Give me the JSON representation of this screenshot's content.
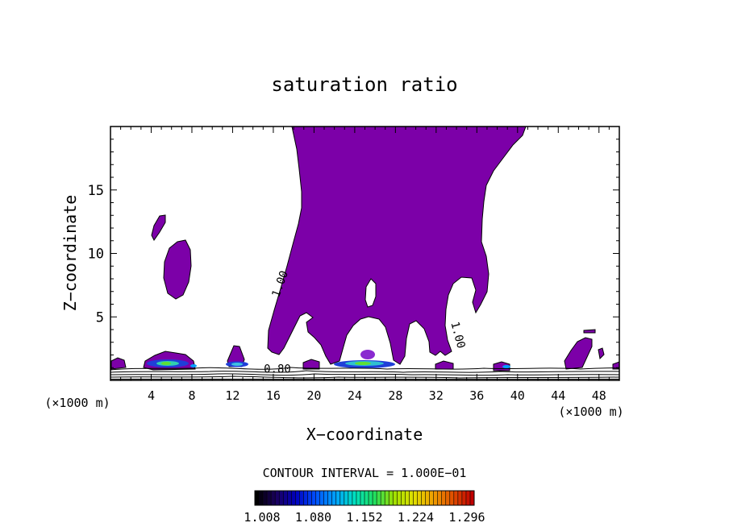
{
  "chart_data": {
    "type": "contour",
    "title": "saturation ratio",
    "xlabel": "X−coordinate",
    "ylabel": "Z−coordinate",
    "x_unit_left": "(×1000 m)",
    "x_unit_right": "(×1000 m)",
    "xlim": [
      0,
      50
    ],
    "ylim": [
      0,
      20
    ],
    "x_ticks": [
      4,
      8,
      12,
      16,
      20,
      24,
      28,
      32,
      36,
      40,
      44,
      48
    ],
    "x_tick_labels": [
      "4",
      "8",
      "12",
      "16",
      "20",
      "24",
      "28",
      "32",
      "36",
      "40",
      "44",
      "48"
    ],
    "y_ticks": [
      5,
      10,
      15
    ],
    "y_tick_labels": [
      "5",
      "10",
      "15"
    ],
    "contour_labels": [
      {
        "text": "1.00",
        "x": 17.0,
        "z": 7.5,
        "angle": -70
      },
      {
        "text": "1.00",
        "x": 33.8,
        "z": 3.5,
        "angle": 75
      },
      {
        "text": "0.80",
        "x": 16.4,
        "z": 0.6,
        "angle": 0
      }
    ],
    "fill_color": "#7c00a8",
    "contour_interval_text": "CONTOUR INTERVAL = 1.000E−01",
    "colorbar": {
      "tick_labels": [
        "1.008",
        "1.080",
        "1.152",
        "1.224",
        "1.296"
      ],
      "colors": [
        "#000000",
        "#1a0060",
        "#0000c0",
        "#0050ff",
        "#00a0ff",
        "#00e0c0",
        "#20e060",
        "#a0e000",
        "#e0e000",
        "#f0a000",
        "#e05000",
        "#c00000"
      ]
    }
  }
}
